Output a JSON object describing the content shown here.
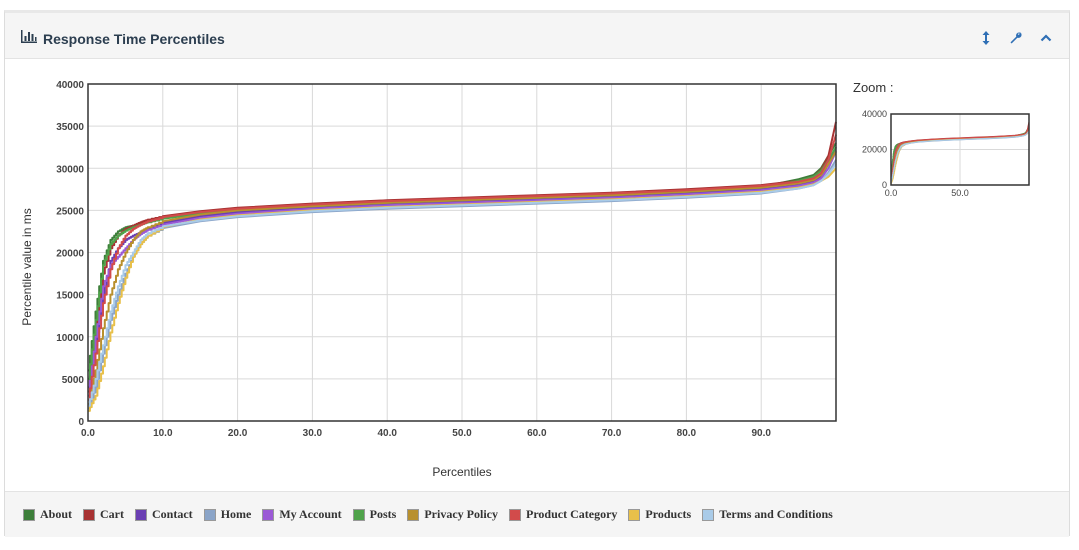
{
  "panel": {
    "title": "Response Time Percentiles",
    "zoom_label": "Zoom :"
  },
  "colors": {
    "accent": "#2f6fb5",
    "grid": "#d9d9d9",
    "frame": "#333333"
  },
  "chart_data": {
    "type": "line",
    "xlabel": "Percentiles",
    "ylabel": "Percentile value in ms",
    "xlim": [
      0,
      100
    ],
    "ylim": [
      0,
      40000
    ],
    "x_ticks": [
      "0.0",
      "10.0",
      "20.0",
      "30.0",
      "40.0",
      "50.0",
      "60.0",
      "70.0",
      "80.0",
      "90.0"
    ],
    "y_ticks": [
      "0",
      "5000",
      "10000",
      "15000",
      "20000",
      "25000",
      "30000",
      "35000",
      "40000"
    ],
    "grid": true,
    "legend_position": "bottom",
    "x": [
      0,
      1,
      2,
      3,
      4,
      5,
      6,
      7,
      8,
      10,
      15,
      20,
      30,
      40,
      50,
      60,
      70,
      80,
      90,
      95,
      97,
      98,
      99,
      100
    ],
    "series": [
      {
        "name": "About",
        "color": "#3d7f3a",
        "values": [
          6000,
          13000,
          19000,
          21500,
          22500,
          23000,
          23200,
          23500,
          23700,
          24100,
          24700,
          25100,
          25600,
          26000,
          26300,
          26600,
          26900,
          27300,
          27800,
          28700,
          29200,
          30000,
          31500,
          33000
        ]
      },
      {
        "name": "Cart",
        "color": "#a83232",
        "values": [
          3500,
          11000,
          17500,
          20500,
          22000,
          22800,
          23200,
          23600,
          23900,
          24300,
          24900,
          25300,
          25800,
          26200,
          26500,
          26800,
          27100,
          27500,
          28000,
          28500,
          29000,
          29800,
          31500,
          35500
        ]
      },
      {
        "name": "Contact",
        "color": "#6a3fb3",
        "values": [
          4000,
          9000,
          15000,
          19000,
          20500,
          21500,
          22000,
          22400,
          22800,
          23500,
          24300,
          24800,
          25300,
          25700,
          26000,
          26300,
          26600,
          27000,
          27500,
          28000,
          28400,
          29000,
          30500,
          32500
        ]
      },
      {
        "name": "Home",
        "color": "#8aa4c8",
        "values": [
          1500,
          4000,
          8000,
          12000,
          15000,
          17500,
          19500,
          21000,
          22000,
          22900,
          23700,
          24200,
          24800,
          25200,
          25500,
          25800,
          26100,
          26500,
          27000,
          27600,
          28000,
          28500,
          29500,
          31000
        ]
      },
      {
        "name": "My Account",
        "color": "#9b59d6",
        "values": [
          3000,
          10000,
          16000,
          18500,
          19500,
          20500,
          21500,
          22200,
          22700,
          23300,
          24100,
          24600,
          25200,
          25600,
          25900,
          26200,
          26500,
          26900,
          27400,
          27900,
          28300,
          28800,
          30000,
          32000
        ]
      },
      {
        "name": "Posts",
        "color": "#4fa34a",
        "values": [
          5000,
          12000,
          18500,
          21000,
          22000,
          22600,
          23000,
          23300,
          23600,
          24000,
          24600,
          25000,
          25500,
          25900,
          26200,
          26500,
          26800,
          27200,
          27700,
          28500,
          29000,
          29700,
          31000,
          32500
        ]
      },
      {
        "name": "Privacy Policy",
        "color": "#b8902e",
        "values": [
          2000,
          6000,
          11000,
          15000,
          18000,
          20000,
          21500,
          22500,
          23000,
          23700,
          24500,
          25000,
          25500,
          25900,
          26200,
          26500,
          26800,
          27200,
          27700,
          28200,
          28600,
          29200,
          30500,
          32000
        ]
      },
      {
        "name": "Product Category",
        "color": "#d24b4b",
        "values": [
          2500,
          8000,
          14000,
          18000,
          20500,
          22000,
          22800,
          23300,
          23700,
          24200,
          24800,
          25200,
          25700,
          26100,
          26400,
          26700,
          27000,
          27400,
          27900,
          28400,
          28800,
          29400,
          31000,
          34000
        ]
      },
      {
        "name": "Products",
        "color": "#e8c04a",
        "values": [
          1200,
          3000,
          6500,
          10500,
          14000,
          17000,
          19500,
          21000,
          22000,
          23000,
          23900,
          24400,
          25000,
          25400,
          25700,
          26000,
          26300,
          26700,
          27200,
          27700,
          28100,
          28500,
          29000,
          30000
        ]
      },
      {
        "name": "Terms and Conditions",
        "color": "#a9cbe8",
        "values": [
          1800,
          5000,
          9000,
          13000,
          16000,
          18500,
          20000,
          21500,
          22300,
          23100,
          23800,
          24300,
          24900,
          25300,
          25600,
          25900,
          26200,
          26600,
          27100,
          27600,
          28000,
          28500,
          29300,
          30500
        ]
      }
    ],
    "zoom": {
      "x_ticks": [
        "0.0",
        "50.0"
      ],
      "y_ticks": [
        "0",
        "20000",
        "40000"
      ],
      "ylim": [
        0,
        40000
      ],
      "xlim": [
        0,
        100
      ]
    }
  }
}
